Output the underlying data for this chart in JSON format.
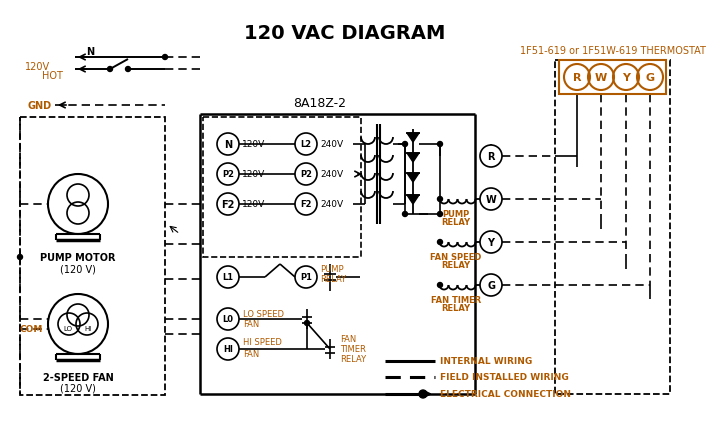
{
  "title": "120 VAC DIAGRAM",
  "title_fontsize": 14,
  "title_fontweight": "bold",
  "bg_color": "#ffffff",
  "line_color": "#000000",
  "orange_color": "#b05a00",
  "thermostat_label": "1F51-619 or 1F51W-619 THERMOSTAT",
  "control_box_label": "8A18Z-2"
}
